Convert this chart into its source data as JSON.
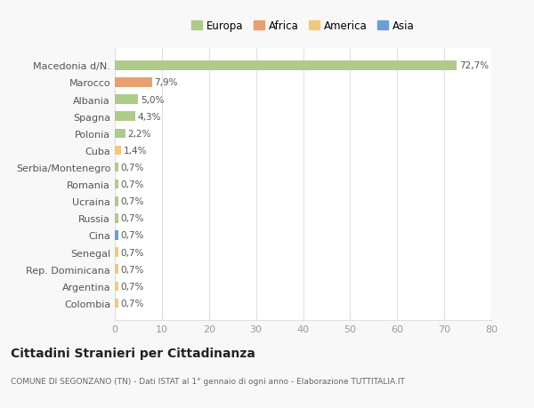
{
  "categories": [
    "Colombia",
    "Argentina",
    "Rep. Dominicana",
    "Senegal",
    "Cina",
    "Russia",
    "Ucraina",
    "Romania",
    "Serbia/Montenegro",
    "Cuba",
    "Polonia",
    "Spagna",
    "Albania",
    "Marocco",
    "Macedonia d/N."
  ],
  "values": [
    0.7,
    0.7,
    0.7,
    0.7,
    0.7,
    0.7,
    0.7,
    0.7,
    0.7,
    1.4,
    2.2,
    4.3,
    5.0,
    7.9,
    72.7
  ],
  "labels": [
    "0,7%",
    "0,7%",
    "0,7%",
    "0,7%",
    "0,7%",
    "0,7%",
    "0,7%",
    "0,7%",
    "0,7%",
    "1,4%",
    "2,2%",
    "4,3%",
    "5,0%",
    "7,9%",
    "72,7%"
  ],
  "colors": [
    "#f2c97a",
    "#f2c97a",
    "#f2c97a",
    "#f2c97a",
    "#6b9fd4",
    "#aecb8a",
    "#aecb8a",
    "#aecb8a",
    "#aecb8a",
    "#f2c97a",
    "#aecb8a",
    "#aecb8a",
    "#aecb8a",
    "#e8a070",
    "#aecb8a"
  ],
  "legend": [
    {
      "label": "Europa",
      "color": "#aecb8a"
    },
    {
      "label": "Africa",
      "color": "#e8a070"
    },
    {
      "label": "America",
      "color": "#f2c97a"
    },
    {
      "label": "Asia",
      "color": "#6b9fd4"
    }
  ],
  "xlim": [
    0,
    80
  ],
  "xticks": [
    0,
    10,
    20,
    30,
    40,
    50,
    60,
    70,
    80
  ],
  "title": "Cittadini Stranieri per Cittadinanza",
  "subtitle": "COMUNE DI SEGONZANO (TN) - Dati ISTAT al 1° gennaio di ogni anno - Elaborazione TUTTITALIA.IT",
  "background_color": "#f8f8f8",
  "plot_bg_color": "#ffffff",
  "grid_color": "#e0e0e0",
  "bar_height": 0.55
}
